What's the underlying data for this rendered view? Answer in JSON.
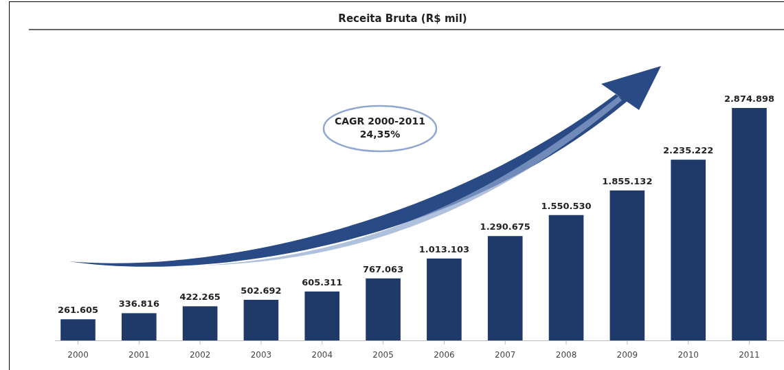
{
  "chart_data": {
    "type": "bar",
    "title": "Receita Bruta (R$ mil)",
    "categories": [
      "2000",
      "2001",
      "2002",
      "2003",
      "2004",
      "2005",
      "2006",
      "2007",
      "2008",
      "2009",
      "2010",
      "2011"
    ],
    "values": [
      261605,
      336816,
      422265,
      502692,
      605311,
      767063,
      1013103,
      1290675,
      1550530,
      1855132,
      2235222,
      2874898
    ],
    "value_labels": [
      "261.605",
      "336.816",
      "422.265",
      "502.692",
      "605.311",
      "767.063",
      "1.013.103",
      "1.290.675",
      "1.550.530",
      "1.855.132",
      "2.235.222",
      "2.874.898"
    ],
    "color": "#1f3a68",
    "annotations": [
      "CAGR 2000-2011\n24,35%"
    ]
  }
}
